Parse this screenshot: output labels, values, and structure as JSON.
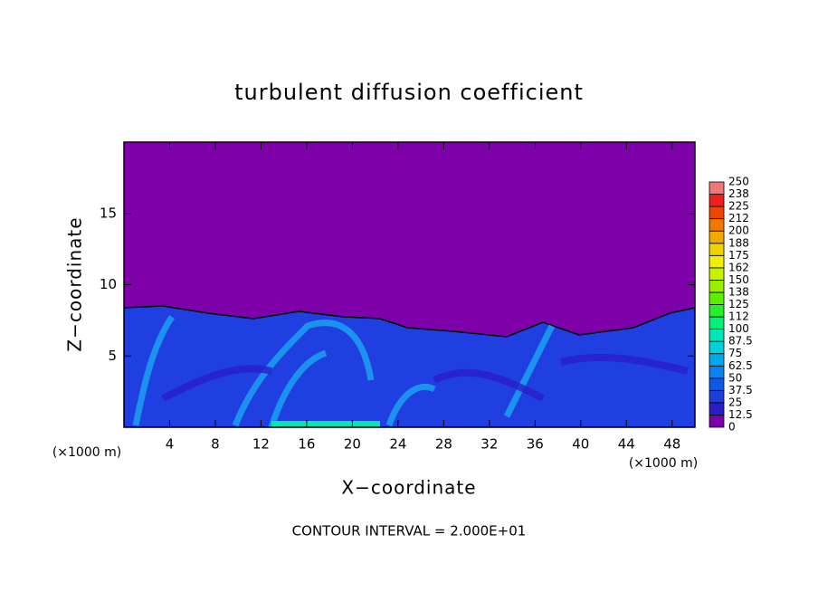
{
  "chart_data": {
    "type": "contour",
    "title": "turbulent diffusion coefficient",
    "xlabel": "X−coordinate",
    "ylabel": "Z−coordinate",
    "x_unit_label": "(×1000 m)",
    "note": "CONTOUR INTERVAL = 2.000E+01",
    "xlim": [
      0,
      50
    ],
    "ylim": [
      0,
      20
    ],
    "xticks": [
      4,
      8,
      12,
      16,
      20,
      24,
      28,
      32,
      36,
      40,
      44,
      48
    ],
    "yticks": [
      5,
      10,
      15
    ],
    "colorbar": {
      "levels": [
        0,
        12.5,
        25,
        37.5,
        50,
        62.5,
        75,
        87.5,
        100,
        {
          "value": 112.5,
          "label": "112"
        },
        125,
        {
          "value": 137.5,
          "label": "138"
        },
        150,
        {
          "value": 162.5,
          "label": "162"
        },
        175,
        {
          "value": 187.5,
          "label": "188"
        },
        200,
        {
          "value": 212.5,
          "label": "212"
        },
        225,
        {
          "value": 237.5,
          "label": "238"
        },
        250
      ],
      "colors": [
        "#7a00aa",
        "#2a1ec8",
        "#1e3cd6",
        "#0a5ae6",
        "#0a82f0",
        "#00aaf0",
        "#00d2dc",
        "#00e6b4",
        "#00f078",
        "#28f028",
        "#5af000",
        "#96f000",
        "#c8f000",
        "#f0f000",
        "#f0d200",
        "#f0aa00",
        "#f07800",
        "#f04600",
        "#f01e1e",
        "#f07878"
      ]
    }
  }
}
